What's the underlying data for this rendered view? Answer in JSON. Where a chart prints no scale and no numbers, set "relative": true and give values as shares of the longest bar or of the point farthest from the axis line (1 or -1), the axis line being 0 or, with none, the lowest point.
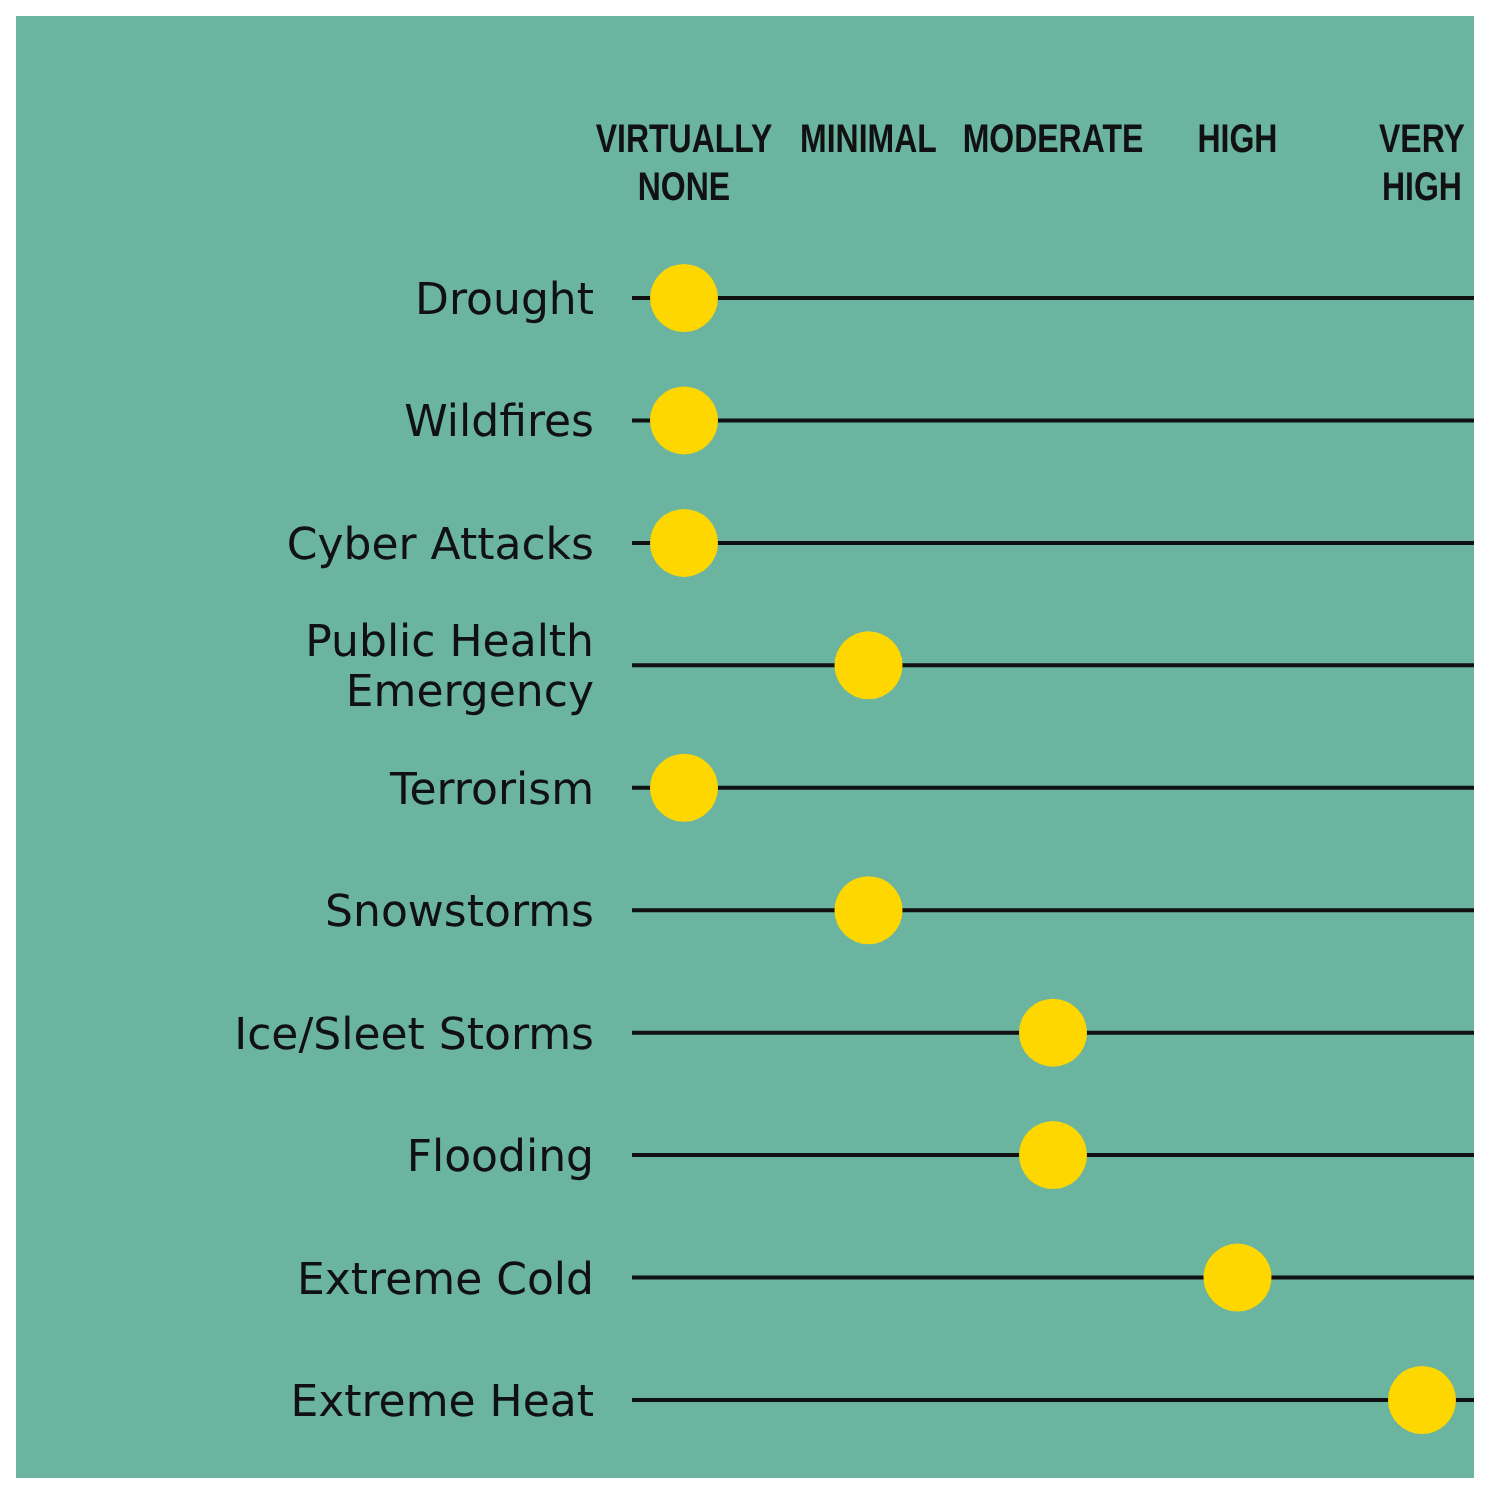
{
  "chart_data": {
    "type": "scatter",
    "orientation": "horizontal",
    "relative": true,
    "categories": [
      "Drought",
      "Wildfires",
      "Cyber Attacks",
      "Public Health Emergency",
      "Terrorism",
      "Snowstorms",
      "Ice/Sleet Storms",
      "Flooding",
      "Extreme Cold",
      "Extreme Heat"
    ],
    "values": [
      0,
      0,
      0,
      0.25,
      0,
      0.25,
      0.5,
      0.5,
      0.75,
      1
    ],
    "color": "#ffd700",
    "marker": "circle",
    "grid": "y",
    "annotations": [
      "VIRTUALLY NONE",
      "MINIMAL",
      "MODERATE",
      "HIGH",
      "VERY HIGH"
    ]
  }
}
